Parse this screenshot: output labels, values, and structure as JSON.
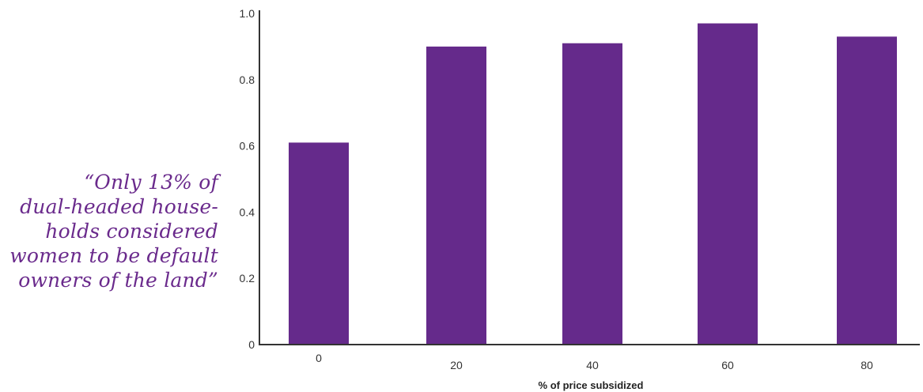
{
  "quote": {
    "lines": [
      "“Only 13% of",
      "dual-headed house-",
      "holds considered",
      "women to be default",
      "owners of the land”"
    ]
  },
  "colors": {
    "bar": "#652a8b",
    "quote": "#6a2a8c",
    "axis": "#333333"
  },
  "chart_data": {
    "type": "bar",
    "categories": [
      "0",
      "20",
      "40",
      "60",
      "80"
    ],
    "values": [
      0.61,
      0.9,
      0.91,
      0.97,
      0.93
    ],
    "xlabel": "% of price subsidized",
    "ylabel": "",
    "ylim": [
      0,
      1.0
    ],
    "yticks": [
      "0",
      "0.2",
      "0.4",
      "0.6",
      "0.8",
      "1.0"
    ],
    "grid": false
  }
}
